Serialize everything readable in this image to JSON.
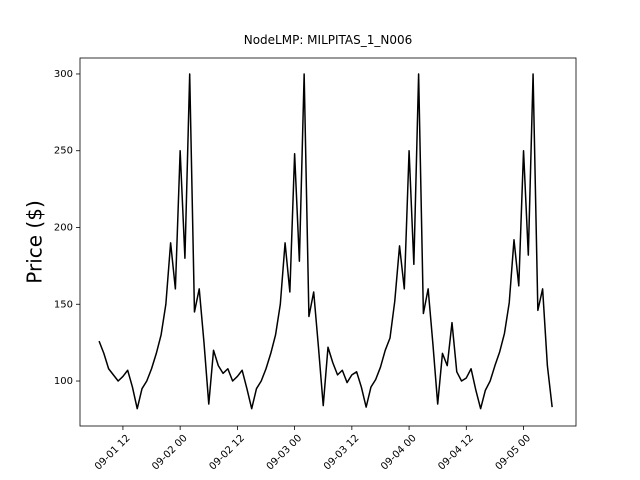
{
  "chart_data": {
    "type": "line",
    "title": "NodeLMP: MILPITAS_1_N006",
    "y_label": "Price ($)",
    "x": [
      "09-01 07",
      "09-01 08",
      "09-01 09",
      "09-01 10",
      "09-01 11",
      "09-01 12",
      "09-01 13",
      "09-01 14",
      "09-01 15",
      "09-01 16",
      "09-01 17",
      "09-01 18",
      "09-01 19",
      "09-01 20",
      "09-01 21",
      "09-01 22",
      "09-01 23",
      "09-02 00",
      "09-02 01",
      "09-02 02",
      "09-02 03",
      "09-02 04",
      "09-02 05",
      "09-02 06",
      "09-02 07",
      "09-02 08",
      "09-02 09",
      "09-02 10",
      "09-02 11",
      "09-02 12",
      "09-02 13",
      "09-02 14",
      "09-02 15",
      "09-02 16",
      "09-02 17",
      "09-02 18",
      "09-02 19",
      "09-02 20",
      "09-02 21",
      "09-02 22",
      "09-02 23",
      "09-03 00",
      "09-03 01",
      "09-03 02",
      "09-03 03",
      "09-03 04",
      "09-03 05",
      "09-03 06",
      "09-03 07",
      "09-03 08",
      "09-03 09",
      "09-03 10",
      "09-03 11",
      "09-03 12",
      "09-03 13",
      "09-03 14",
      "09-03 15",
      "09-03 16",
      "09-03 17",
      "09-03 18",
      "09-03 19",
      "09-03 20",
      "09-03 21",
      "09-03 22",
      "09-03 23",
      "09-04 00",
      "09-04 01",
      "09-04 02",
      "09-04 03",
      "09-04 04",
      "09-04 05",
      "09-04 06",
      "09-04 07",
      "09-04 08",
      "09-04 09",
      "09-04 10",
      "09-04 11",
      "09-04 12",
      "09-04 13",
      "09-04 14",
      "09-04 15",
      "09-04 16",
      "09-04 17",
      "09-04 18",
      "09-04 19",
      "09-04 20",
      "09-04 21",
      "09-04 22",
      "09-04 23",
      "09-05 00",
      "09-05 01",
      "09-05 02",
      "09-05 03",
      "09-05 04",
      "09-05 05",
      "09-05 06"
    ],
    "series": [
      {
        "name": "MILPITAS_1_N006",
        "color": "#000000",
        "values": [
          126,
          118,
          108,
          104,
          100,
          103,
          107,
          96,
          82,
          95,
          100,
          108,
          118,
          130,
          150,
          190,
          160,
          250,
          180,
          300,
          145,
          160,
          125,
          85,
          120,
          110,
          105,
          108,
          100,
          103,
          107,
          95,
          82,
          95,
          100,
          108,
          118,
          130,
          150,
          190,
          158,
          248,
          178,
          300,
          142,
          158,
          122,
          84,
          122,
          112,
          104,
          107,
          99,
          104,
          106,
          96,
          83,
          96,
          101,
          109,
          120,
          128,
          152,
          188,
          160,
          250,
          176,
          300,
          144,
          160,
          124,
          85,
          118,
          110,
          138,
          106,
          100,
          102,
          108,
          94,
          82,
          94,
          100,
          110,
          119,
          131,
          151,
          192,
          162,
          250,
          182,
          300,
          146,
          160,
          110,
          83
        ]
      }
    ],
    "xlim": [
      "09-01 03",
      "09-05 11"
    ],
    "xticks": [
      "09-01 12",
      "09-02 00",
      "09-02 12",
      "09-03 00",
      "09-03 12",
      "09-04 00",
      "09-04 12",
      "09-05 00"
    ],
    "ylim": [
      70.7,
      310.4
    ],
    "yticks": [
      100,
      150,
      200,
      250,
      300
    ]
  }
}
